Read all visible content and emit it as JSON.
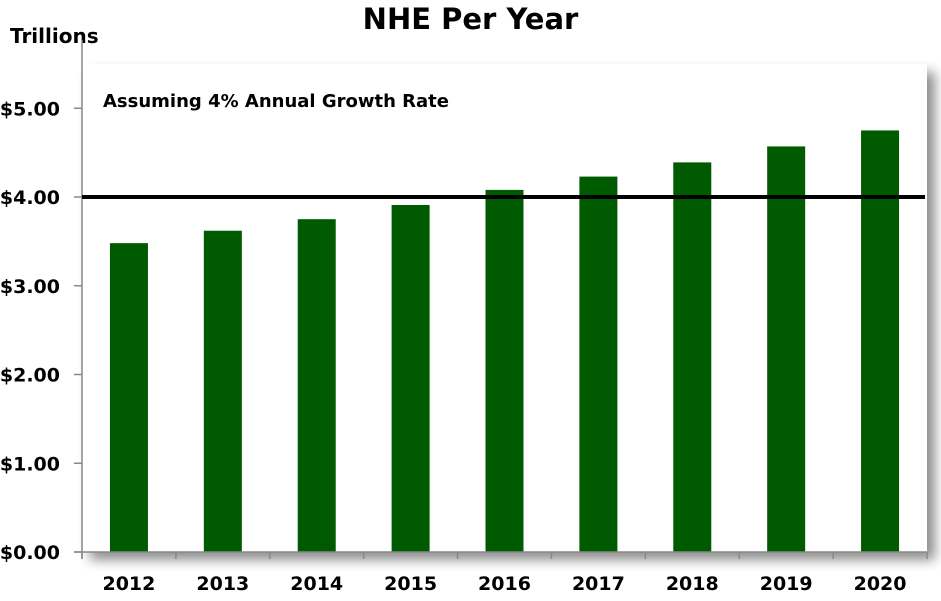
{
  "chart_data": {
    "type": "bar",
    "title": "NHE Per Year",
    "ylabel": "Trillions",
    "annotation": "Assuming 4% Annual Growth Rate",
    "categories": [
      "2012",
      "2013",
      "2014",
      "2015",
      "2016",
      "2017",
      "2018",
      "2019",
      "2020"
    ],
    "values": [
      3.48,
      3.62,
      3.75,
      3.91,
      4.08,
      4.23,
      4.39,
      4.57,
      4.75
    ],
    "ylim": [
      0,
      5.5
    ],
    "yticks": [
      0,
      1,
      2,
      3,
      4,
      5
    ],
    "ytick_labels": [
      "$0.00",
      "$1.00",
      "$2.00",
      "$3.00",
      "$4.00",
      "$5.00"
    ],
    "reference_line": 4.0,
    "grid": false,
    "colors": {
      "bar": "#005A00",
      "reference_line": "#000000"
    }
  }
}
